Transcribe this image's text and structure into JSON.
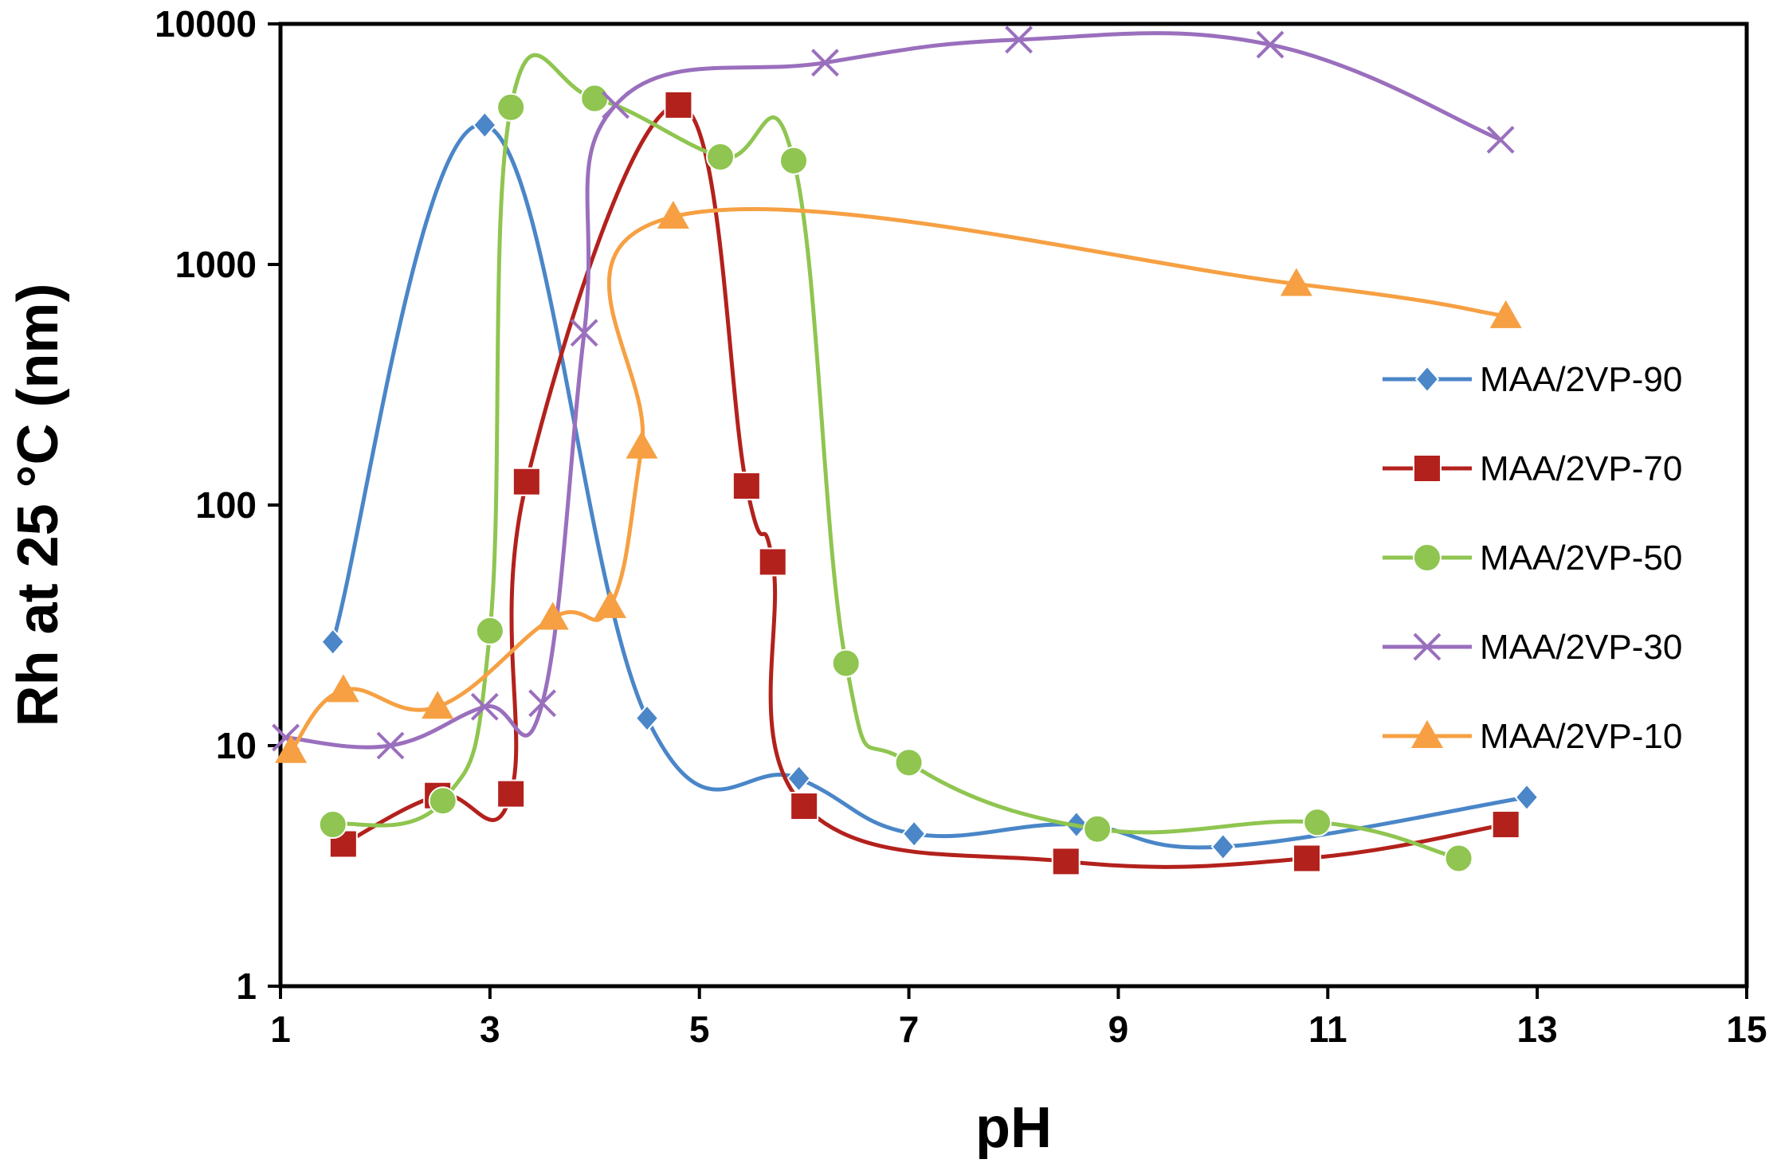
{
  "chart_data": {
    "type": "line",
    "title": "",
    "xlabel": "pH",
    "ylabel": "Rh at 25 °C (nm)",
    "xlim": [
      1,
      15
    ],
    "ylim": [
      1,
      10000
    ],
    "yscale": "log",
    "xticks": [
      "1",
      "3",
      "5",
      "7",
      "9",
      "11",
      "13",
      "15"
    ],
    "yticks": [
      "1",
      "10",
      "100",
      "1000",
      "10000"
    ],
    "legend_position": "right",
    "series": [
      {
        "name": "MAA/2VP-90",
        "color": "#4a86c8",
        "marker": "diamond",
        "x": [
          1.5,
          2.95,
          4.5,
          5.95,
          7.05,
          8.6,
          10.0,
          12.9
        ],
        "y": [
          27,
          3800,
          13,
          7.3,
          4.3,
          4.7,
          3.8,
          6.1
        ]
      },
      {
        "name": "MAA/2VP-70",
        "color": "#b3211c",
        "marker": "square",
        "x": [
          1.6,
          2.5,
          3.2,
          3.35,
          4.8,
          5.45,
          5.7,
          6.0,
          8.5,
          10.8,
          12.7
        ],
        "y": [
          3.9,
          6.2,
          6.3,
          125,
          4600,
          120,
          58,
          5.6,
          3.3,
          3.4,
          4.7
        ]
      },
      {
        "name": "MAA/2VP-50",
        "color": "#8fc550",
        "marker": "circle",
        "x": [
          1.5,
          2.55,
          3.0,
          3.2,
          4.0,
          5.2,
          5.9,
          6.4,
          7.0,
          8.8,
          10.9,
          12.25
        ],
        "y": [
          4.7,
          5.9,
          30,
          4500,
          4900,
          2800,
          2700,
          22,
          8.5,
          4.5,
          4.8,
          3.4
        ]
      },
      {
        "name": "MAA/2VP-30",
        "color": "#9a6fbd",
        "marker": "x",
        "x": [
          1.05,
          2.05,
          2.95,
          3.5,
          3.9,
          4.2,
          6.2,
          8.05,
          10.45,
          12.65
        ],
        "y": [
          10.8,
          10,
          14.5,
          15,
          520,
          4600,
          6900,
          8600,
          8200,
          3300
        ]
      },
      {
        "name": "MAA/2VP-10",
        "color": "#f6a043",
        "marker": "triangle",
        "x": [
          1.1,
          1.6,
          2.5,
          3.6,
          4.15,
          4.45,
          4.75,
          10.7,
          12.7
        ],
        "y": [
          9.5,
          17,
          14.5,
          34,
          38,
          175,
          1580,
          830,
          610
        ]
      }
    ]
  }
}
